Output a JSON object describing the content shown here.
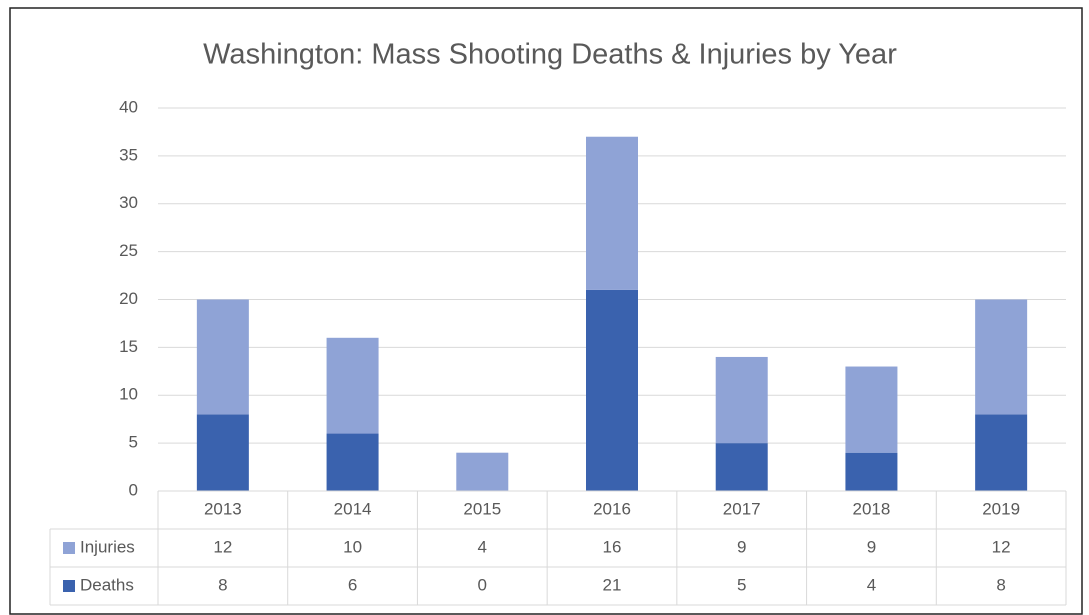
{
  "chart_data": {
    "type": "stacked_bar",
    "title": "Washington: Mass Shooting Deaths & Injuries by Year",
    "categories": [
      "2013",
      "2014",
      "2015",
      "2016",
      "2017",
      "2018",
      "2019"
    ],
    "series": [
      {
        "name": "Injuries",
        "color": "#8fa3d6",
        "values": [
          12,
          10,
          4,
          16,
          9,
          9,
          12
        ]
      },
      {
        "name": "Deaths",
        "color": "#3a62ae",
        "values": [
          8,
          6,
          0,
          21,
          5,
          4,
          8
        ]
      }
    ],
    "ylim": [
      0,
      40
    ],
    "yticks": [
      0,
      5,
      10,
      15,
      20,
      25,
      30,
      35,
      40
    ],
    "grid": true
  }
}
